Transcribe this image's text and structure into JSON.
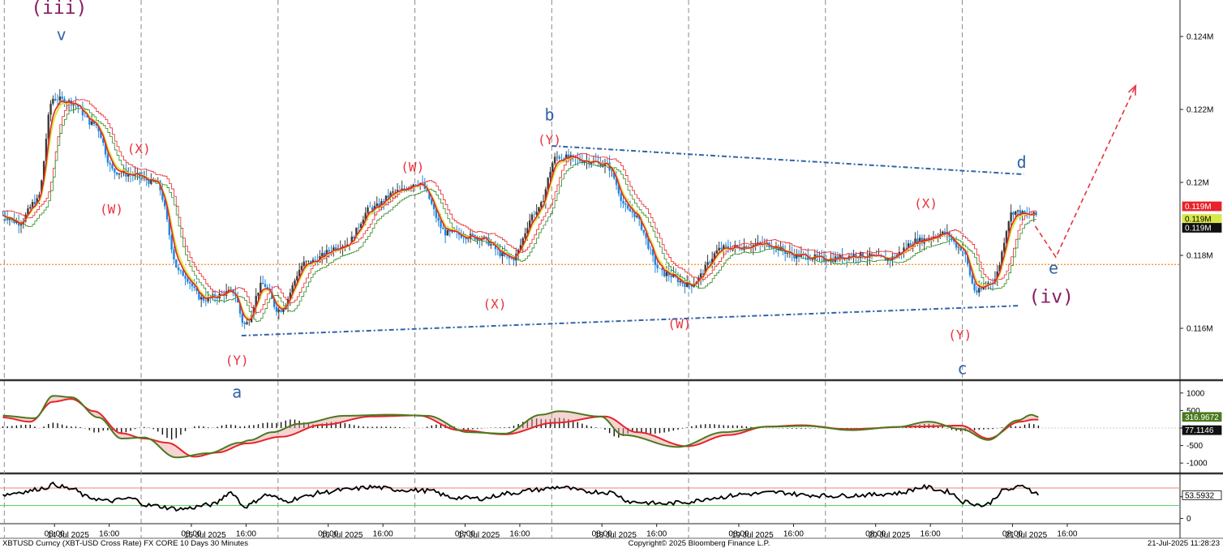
{
  "chart_data": {
    "type": "candlestick",
    "footer_left": "XBTUSD Curncy (XBT-USD Cross Rate) FX CORE 10 Days 30 Minutes",
    "footer_center": "Copyright© 2025 Bloomberg Finance L.P.",
    "footer_right": "21-Jul-2025 11:28:23",
    "price_axis": {
      "ylim": [
        0.1146,
        0.125
      ],
      "ticks": [
        {
          "value": 0.124,
          "label": "0.124M"
        },
        {
          "value": 0.122,
          "label": "0.122M"
        },
        {
          "value": 0.12,
          "label": "0.12M"
        },
        {
          "value": 0.118,
          "label": "0.118M"
        },
        {
          "value": 0.116,
          "label": "0.116M"
        }
      ],
      "tags": [
        {
          "value": 0.1193,
          "label": "0.119M",
          "bg": "#e8232a",
          "fg": "#ffffff"
        },
        {
          "value": 0.119,
          "label": "0.119M",
          "bg": "#d8e84a",
          "fg": "#000000"
        },
        {
          "value": 0.1188,
          "label": "0.119M",
          "bg": "#111111",
          "fg": "#ffffff"
        }
      ],
      "horizontal_level": 0.11775
    },
    "time_axis": {
      "xlim": [
        0,
        360
      ],
      "day_boundaries": [
        1,
        61,
        121,
        181,
        241,
        301,
        361,
        421
      ],
      "ticks": [
        {
          "t": 23,
          "label": "08:00"
        },
        {
          "t": 47,
          "label": "16:00"
        },
        {
          "t": 83,
          "label": "08:00"
        },
        {
          "t": 107,
          "label": "16:00"
        },
        {
          "t": 143,
          "label": "08:00"
        },
        {
          "t": 167,
          "label": "16:00"
        },
        {
          "t": 203,
          "label": "08:00"
        },
        {
          "t": 227,
          "label": "16:00"
        },
        {
          "t": 263,
          "label": "08:00"
        },
        {
          "t": 287,
          "label": "16:00"
        },
        {
          "t": 323,
          "label": "08:00"
        },
        {
          "t": 347,
          "label": "16:00"
        },
        {
          "t": 383,
          "label": "08:00"
        },
        {
          "t": 407,
          "label": "16:00"
        },
        {
          "t": 443,
          "label": "08:00"
        },
        {
          "t": 467,
          "label": "16:00"
        }
      ],
      "dates": [
        {
          "t": 29,
          "label": "14 Jul 2025"
        },
        {
          "t": 89,
          "label": "15 Jul 2025"
        },
        {
          "t": 149,
          "label": "16 Jul 2025"
        },
        {
          "t": 209,
          "label": "17 Jul 2025"
        },
        {
          "t": 269,
          "label": "18 Jul 2025"
        },
        {
          "t": 329,
          "label": "19 Jul 2025"
        },
        {
          "t": 389,
          "label": "20 Jul 2025"
        },
        {
          "t": 449,
          "label": "21 Jul 2025"
        }
      ]
    },
    "price_pivots": [
      [
        0,
        0.1191
      ],
      [
        7,
        0.1189
      ],
      [
        15,
        0.1195
      ],
      [
        22,
        0.1223
      ],
      [
        30,
        0.1222
      ],
      [
        40,
        0.1216
      ],
      [
        49,
        0.1203
      ],
      [
        57,
        0.1202
      ],
      [
        67,
        0.12
      ],
      [
        78,
        0.1175
      ],
      [
        88,
        0.1168
      ],
      [
        101,
        0.117
      ],
      [
        106,
        0.1161
      ],
      [
        114,
        0.1172
      ],
      [
        121,
        0.1165
      ],
      [
        133,
        0.1178
      ],
      [
        150,
        0.1183
      ],
      [
        162,
        0.1193
      ],
      [
        173,
        0.11975
      ],
      [
        182,
        0.12
      ],
      [
        195,
        0.1186
      ],
      [
        208,
        0.1185
      ],
      [
        223,
        0.1179
      ],
      [
        234,
        0.1192
      ],
      [
        243,
        0.1207
      ],
      [
        256,
        0.1206
      ],
      [
        264,
        0.1205
      ],
      [
        275,
        0.1192
      ],
      [
        290,
        0.1175
      ],
      [
        301,
        0.1172
      ],
      [
        316,
        0.1182
      ],
      [
        335,
        0.1183
      ],
      [
        348,
        0.118
      ],
      [
        361,
        0.1179
      ],
      [
        375,
        0.118
      ],
      [
        388,
        0.1179
      ],
      [
        401,
        0.1184
      ],
      [
        413,
        0.1186
      ],
      [
        420,
        0.1182
      ],
      [
        427,
        0.117
      ],
      [
        434,
        0.1173
      ],
      [
        443,
        0.1192
      ],
      [
        450,
        0.1191
      ]
    ],
    "channel_lines": [
      {
        "from": [
          105,
          0.1158
        ],
        "to": [
          446,
          0.11662
        ],
        "color": "#3063a8"
      },
      {
        "from": [
          241,
          0.121
        ],
        "to": [
          448,
          0.12022
        ],
        "color": "#3063a8"
      }
    ],
    "projection": {
      "points": [
        [
          453,
          0.1188
        ],
        [
          462,
          0.11795
        ],
        [
          497,
          0.12265
        ]
      ],
      "color": "#e8323c"
    },
    "wave_labels": [
      {
        "text": "(iii)",
        "t": 25,
        "price": 0.12462,
        "style": "purple"
      },
      {
        "text": "v",
        "t": 26,
        "price": 0.1239,
        "style": "blue"
      },
      {
        "text": "(X)",
        "t": 60,
        "price": 0.1208,
        "style": "red"
      },
      {
        "text": "(W)",
        "t": 48,
        "price": 0.11915,
        "style": "red"
      },
      {
        "text": "(Y)",
        "t": 103,
        "price": 0.115,
        "style": "red"
      },
      {
        "text": "a",
        "t": 103,
        "price": 0.1141,
        "style": "blue"
      },
      {
        "text": "(W)",
        "t": 180,
        "price": 0.1203,
        "style": "red"
      },
      {
        "text": "(X)",
        "t": 216,
        "price": 0.11655,
        "style": "red"
      },
      {
        "text": "b",
        "t": 240,
        "price": 0.1217,
        "style": "blue"
      },
      {
        "text": "(Y)",
        "t": 240,
        "price": 0.12105,
        "style": "red"
      },
      {
        "text": "(W)",
        "t": 297,
        "price": 0.116,
        "style": "red"
      },
      {
        "text": "(X)",
        "t": 405,
        "price": 0.1193,
        "style": "red"
      },
      {
        "text": "(Y)",
        "t": 420,
        "price": 0.1157,
        "style": "red"
      },
      {
        "text": "c",
        "t": 421,
        "price": 0.11475,
        "style": "blue"
      },
      {
        "text": "d",
        "t": 447,
        "price": 0.1204,
        "style": "blue"
      },
      {
        "text": "e",
        "t": 461,
        "price": 0.1175,
        "style": "blue"
      },
      {
        "text": "(iv)",
        "t": 460,
        "price": 0.1167,
        "style": "purple"
      }
    ],
    "macd": {
      "ylim": [
        -1250,
        1250
      ],
      "ticks": [
        {
          "value": 1000,
          "label": "1000"
        },
        {
          "value": 500,
          "label": "500"
        },
        {
          "value": 0,
          "label": "0"
        },
        {
          "value": -500,
          "label": "-500"
        },
        {
          "value": -1000,
          "label": "-1000"
        }
      ],
      "tags": [
        {
          "value": 316.9672,
          "label": "316.9672",
          "bg": "#4a7a1e",
          "fg": "#ffffff"
        },
        {
          "value": 77.1146,
          "label": "77.1146",
          "bg": "#111111",
          "fg": "#ffffff"
        }
      ],
      "signal_pivots": [
        [
          0,
          300
        ],
        [
          12,
          180
        ],
        [
          22,
          750
        ],
        [
          30,
          830
        ],
        [
          40,
          480
        ],
        [
          52,
          -150
        ],
        [
          62,
          -300
        ],
        [
          72,
          -420
        ],
        [
          84,
          -820
        ],
        [
          94,
          -700
        ],
        [
          107,
          -440
        ],
        [
          122,
          -250
        ],
        [
          140,
          90
        ],
        [
          162,
          330
        ],
        [
          182,
          360
        ],
        [
          200,
          -60
        ],
        [
          220,
          -180
        ],
        [
          242,
          150
        ],
        [
          264,
          330
        ],
        [
          278,
          -120
        ],
        [
          300,
          -520
        ],
        [
          318,
          -200
        ],
        [
          335,
          40
        ],
        [
          350,
          80
        ],
        [
          370,
          -30
        ],
        [
          400,
          40
        ],
        [
          420,
          70
        ],
        [
          432,
          -300
        ],
        [
          446,
          180
        ],
        [
          452,
          240
        ]
      ],
      "macd_pivots": [
        [
          0,
          350
        ],
        [
          14,
          280
        ],
        [
          22,
          920
        ],
        [
          30,
          880
        ],
        [
          42,
          300
        ],
        [
          52,
          -300
        ],
        [
          62,
          -270
        ],
        [
          76,
          -840
        ],
        [
          90,
          -720
        ],
        [
          104,
          -420
        ],
        [
          108,
          -350
        ],
        [
          118,
          -120
        ],
        [
          130,
          120
        ],
        [
          150,
          350
        ],
        [
          170,
          380
        ],
        [
          186,
          350
        ],
        [
          204,
          -120
        ],
        [
          220,
          -160
        ],
        [
          236,
          380
        ],
        [
          244,
          480
        ],
        [
          262,
          330
        ],
        [
          272,
          -200
        ],
        [
          296,
          -540
        ],
        [
          316,
          -120
        ],
        [
          336,
          40
        ],
        [
          352,
          60
        ],
        [
          372,
          -60
        ],
        [
          392,
          30
        ],
        [
          406,
          180
        ],
        [
          420,
          -30
        ],
        [
          432,
          -340
        ],
        [
          445,
          220
        ],
        [
          451,
          380
        ],
        [
          454,
          316.97
        ]
      ]
    },
    "rsi": {
      "ylim": [
        -12,
        98
      ],
      "ticks": [
        {
          "value": 50,
          "label": "50"
        },
        {
          "value": 0,
          "label": "0"
        }
      ],
      "bands": {
        "upper": 70,
        "lower": 30
      },
      "tags": [
        {
          "value": 53.5932,
          "label": "53.5932",
          "bg": "#ffffff",
          "fg": "#000000"
        }
      ],
      "pivots": [
        [
          0,
          55
        ],
        [
          10,
          62
        ],
        [
          18,
          70
        ],
        [
          22,
          78
        ],
        [
          30,
          68
        ],
        [
          38,
          48
        ],
        [
          46,
          40
        ],
        [
          56,
          46
        ],
        [
          64,
          30
        ],
        [
          78,
          22
        ],
        [
          92,
          32
        ],
        [
          100,
          60
        ],
        [
          106,
          28
        ],
        [
          116,
          54
        ],
        [
          124,
          40
        ],
        [
          132,
          50
        ],
        [
          140,
          60
        ],
        [
          150,
          66
        ],
        [
          162,
          72
        ],
        [
          174,
          66
        ],
        [
          186,
          64
        ],
        [
          198,
          48
        ],
        [
          210,
          46
        ],
        [
          222,
          58
        ],
        [
          234,
          66
        ],
        [
          244,
          72
        ],
        [
          256,
          62
        ],
        [
          266,
          60
        ],
        [
          276,
          38
        ],
        [
          290,
          34
        ],
        [
          300,
          38
        ],
        [
          312,
          48
        ],
        [
          326,
          56
        ],
        [
          340,
          60
        ],
        [
          352,
          54
        ],
        [
          364,
          52
        ],
        [
          378,
          54
        ],
        [
          392,
          58
        ],
        [
          404,
          72
        ],
        [
          414,
          62
        ],
        [
          422,
          38
        ],
        [
          430,
          30
        ],
        [
          440,
          66
        ],
        [
          448,
          74
        ],
        [
          452,
          62
        ],
        [
          454,
          53.59
        ]
      ]
    }
  }
}
